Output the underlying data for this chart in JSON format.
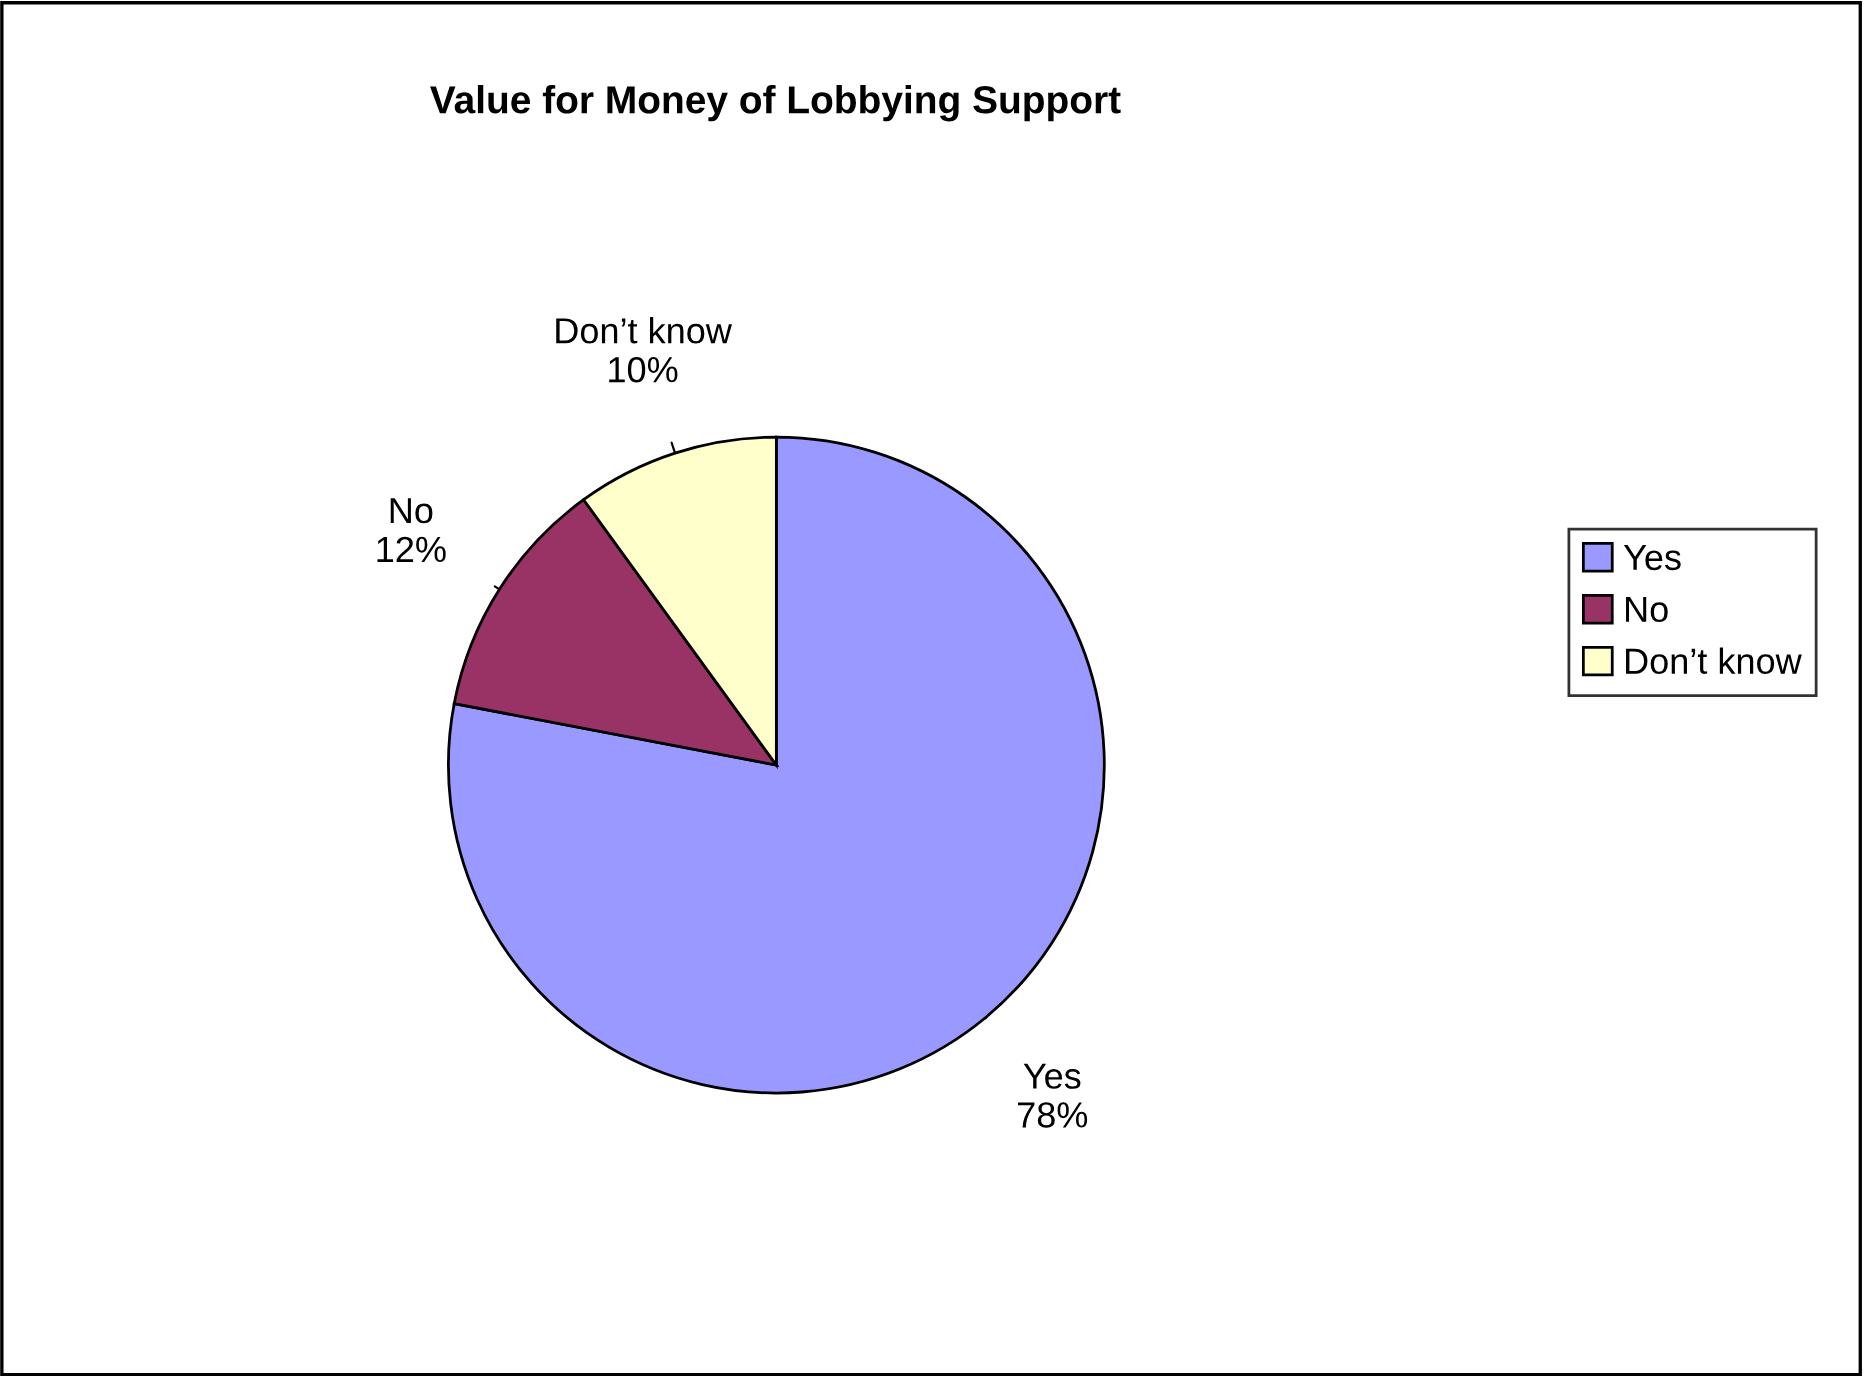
{
  "chart_data": {
    "type": "pie",
    "title": "Value for Money of Lobbying Support",
    "categories": [
      "Yes",
      "No",
      "Don’t know"
    ],
    "values": [
      78,
      12,
      10
    ],
    "value_labels": [
      "78%",
      "12%",
      "10%"
    ],
    "colors": [
      "#9999ff",
      "#993366",
      "#ffffcc"
    ],
    "legend": "right"
  }
}
